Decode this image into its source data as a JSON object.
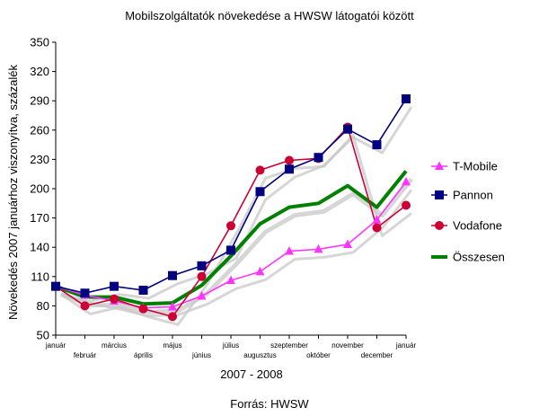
{
  "chart_data": {
    "type": "line",
    "title": "Mobilszolgáltatók növekedése a HWSW látogatói között",
    "xlabel": "2007 - 2008",
    "ylabel": "Növekedés 2007 januárhoz viszonyítva, százalék",
    "source": "Forrás: HWSW",
    "categories": [
      "január",
      "február",
      "március",
      "április",
      "május",
      "június",
      "július",
      "augusztus",
      "szeptember",
      "október",
      "november",
      "december",
      "január"
    ],
    "yticks": [
      50,
      80,
      110,
      140,
      170,
      200,
      230,
      260,
      290,
      320,
      350
    ],
    "ylim": [
      50,
      350
    ],
    "grid": false,
    "legend": "right",
    "series": [
      {
        "name": "T-Mobile",
        "color": "#ff33ff",
        "marker": "triangle",
        "values": [
          100,
          91,
          85,
          78,
          79,
          90,
          106,
          115,
          136,
          138,
          143,
          168,
          207
        ]
      },
      {
        "name": "Pannon",
        "color": "#000080",
        "marker": "square",
        "values": [
          100,
          93,
          100,
          96,
          111,
          121,
          137,
          197,
          220,
          232,
          261,
          245,
          292
        ]
      },
      {
        "name": "Vodafone",
        "color": "#cc0033",
        "marker": "circle",
        "values": [
          100,
          80,
          87,
          77,
          69,
          110,
          162,
          219,
          229,
          231,
          263,
          160,
          183
        ]
      },
      {
        "name": "Összesen",
        "color": "#008000",
        "marker": "none",
        "values": [
          100,
          89,
          89,
          82,
          83,
          101,
          131,
          164,
          181,
          185,
          203,
          181,
          218
        ]
      }
    ]
  }
}
